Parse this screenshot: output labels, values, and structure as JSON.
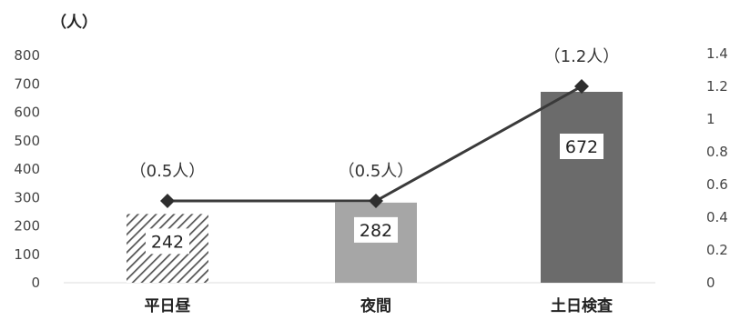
{
  "chart_data": {
    "type": "bar",
    "categories": [
      "平日昼",
      "夜間",
      "土日検査"
    ],
    "unit_label": "（人）",
    "y_left": {
      "ticks": [
        "0",
        "100",
        "200",
        "300",
        "400",
        "500",
        "600",
        "700",
        "800"
      ],
      "range": [
        0,
        800
      ]
    },
    "y_right": {
      "ticks": [
        "0",
        "0.2",
        "0.4",
        "0.6",
        "0.8",
        "1",
        "1.2",
        "1.4"
      ],
      "range": [
        0,
        1.4
      ]
    },
    "series": [
      {
        "type": "bar",
        "values": [
          242,
          282,
          672
        ],
        "labels": [
          "242",
          "282",
          "672"
        ],
        "colors": [
          "#8a8a8a",
          "#a6a6a6",
          "#6b6b6b"
        ],
        "hatched": [
          true,
          false,
          false
        ]
      },
      {
        "type": "line",
        "values": [
          0.5,
          0.5,
          1.2
        ],
        "labels": [
          "（0.5人）",
          "（0.5人）",
          "（1.2人）"
        ],
        "axis": "right",
        "color": "#3a3a3a"
      }
    ],
    "grid": false,
    "legend": "none"
  }
}
